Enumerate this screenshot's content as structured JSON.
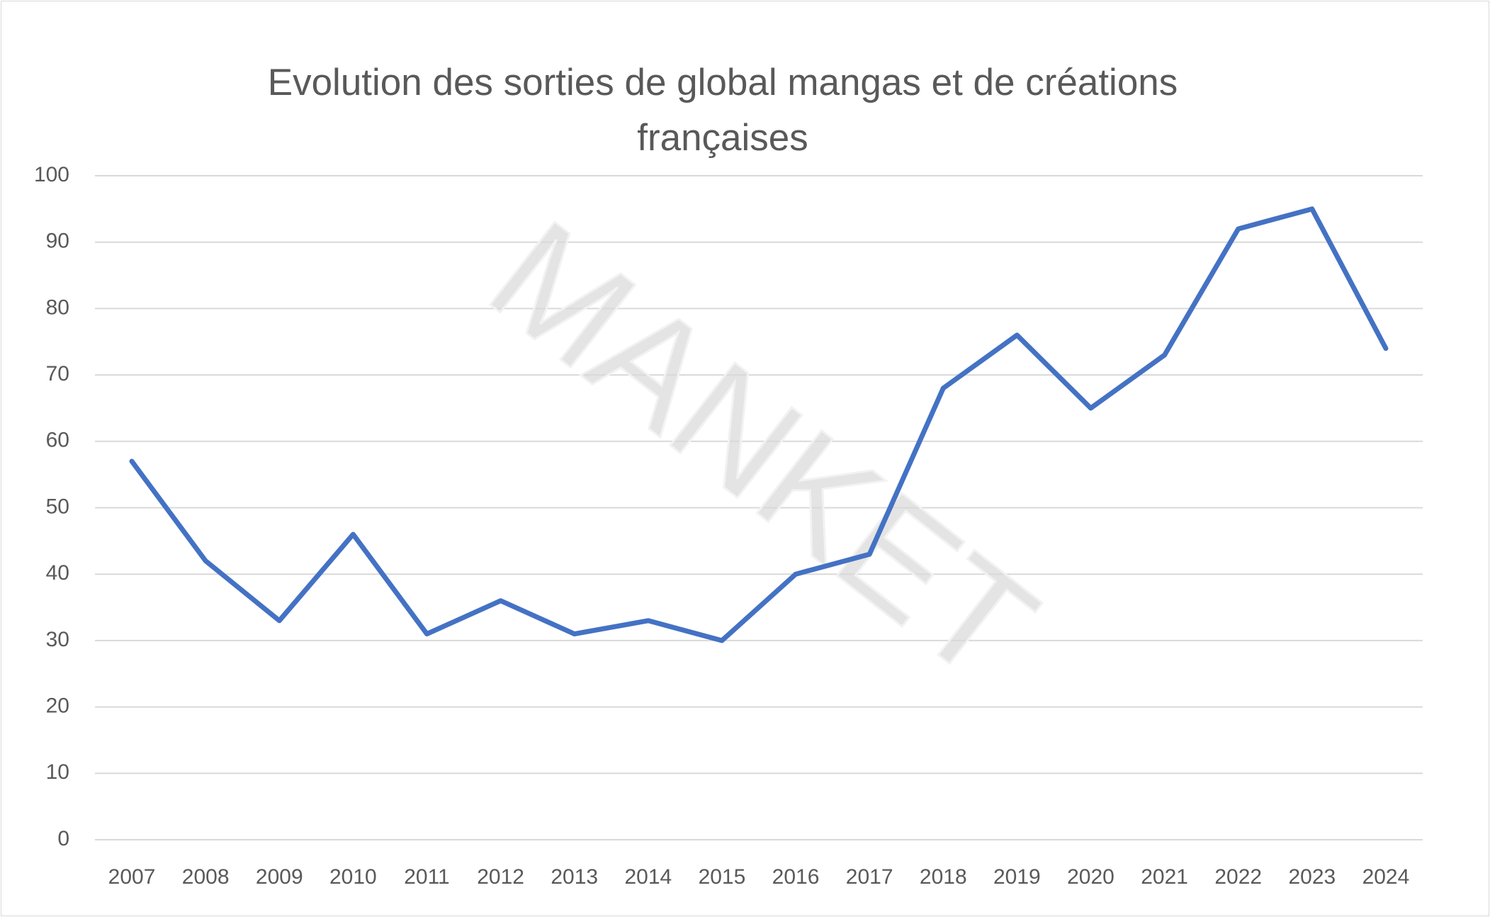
{
  "chart_data": {
    "type": "line",
    "title": "Evolution des sorties de global mangas et de créations françaises",
    "watermark": "MANKET",
    "categories": [
      "2007",
      "2008",
      "2009",
      "2010",
      "2011",
      "2012",
      "2013",
      "2014",
      "2015",
      "2016",
      "2017",
      "2018",
      "2019",
      "2020",
      "2021",
      "2022",
      "2023",
      "2024"
    ],
    "values": [
      57,
      42,
      33,
      46,
      31,
      36,
      31,
      33,
      30,
      40,
      43,
      68,
      76,
      65,
      73,
      92,
      95,
      74
    ],
    "color": "#4472c4",
    "ylim": [
      0,
      100
    ],
    "yticks": [
      0,
      10,
      20,
      30,
      40,
      50,
      60,
      70,
      80,
      90,
      100
    ],
    "grid": true
  }
}
